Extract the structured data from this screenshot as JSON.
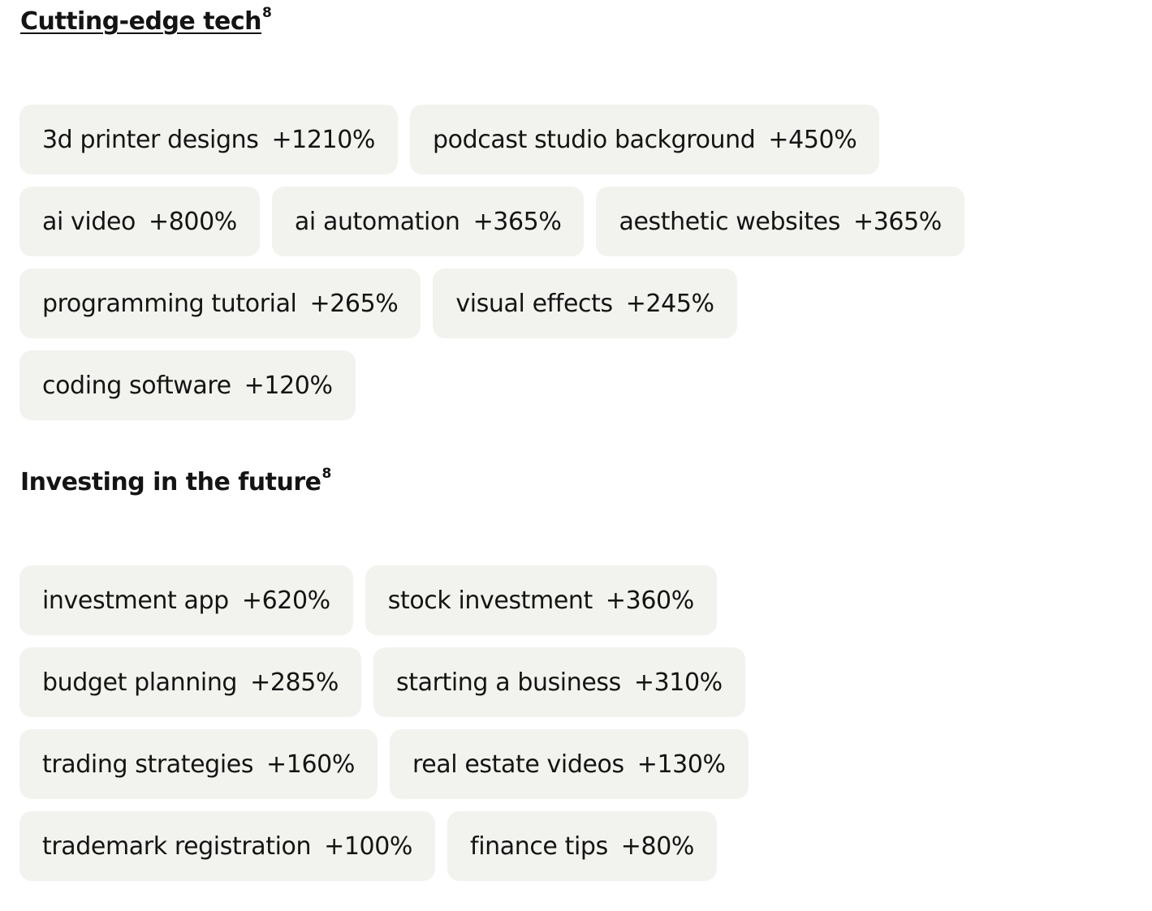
{
  "sections": [
    {
      "title": "Cutting-edge tech",
      "footnote": "8",
      "rows": [
        [
          {
            "label": "3d printer designs",
            "growth": "+1210%"
          },
          {
            "label": "podcast studio background",
            "growth": "+450%"
          }
        ],
        [
          {
            "label": "ai video",
            "growth": "+800%"
          },
          {
            "label": "ai automation",
            "growth": "+365%"
          },
          {
            "label": "aesthetic websites",
            "growth": "+365%"
          }
        ],
        [
          {
            "label": "programming tutorial",
            "growth": "+265%"
          },
          {
            "label": "visual effects",
            "growth": "+245%"
          }
        ],
        [
          {
            "label": "coding software",
            "growth": "+120%"
          }
        ]
      ]
    },
    {
      "title": "Investing in the future",
      "footnote": "8",
      "rows": [
        [
          {
            "label": "investment app",
            "growth": "+620%"
          },
          {
            "label": "stock investment",
            "growth": "+360%"
          }
        ],
        [
          {
            "label": "budget planning",
            "growth": "+285%"
          },
          {
            "label": "starting a business",
            "growth": "+310%"
          }
        ],
        [
          {
            "label": "trading strategies",
            "growth": "+160%"
          },
          {
            "label": "real estate videos",
            "growth": "+130%"
          }
        ],
        [
          {
            "label": "trademark registration",
            "growth": "+100%"
          },
          {
            "label": "finance tips",
            "growth": "+80%"
          }
        ]
      ]
    }
  ],
  "colors": {
    "tag_background": "#f2f2ef",
    "text": "#141414",
    "page_background": "#ffffff"
  }
}
